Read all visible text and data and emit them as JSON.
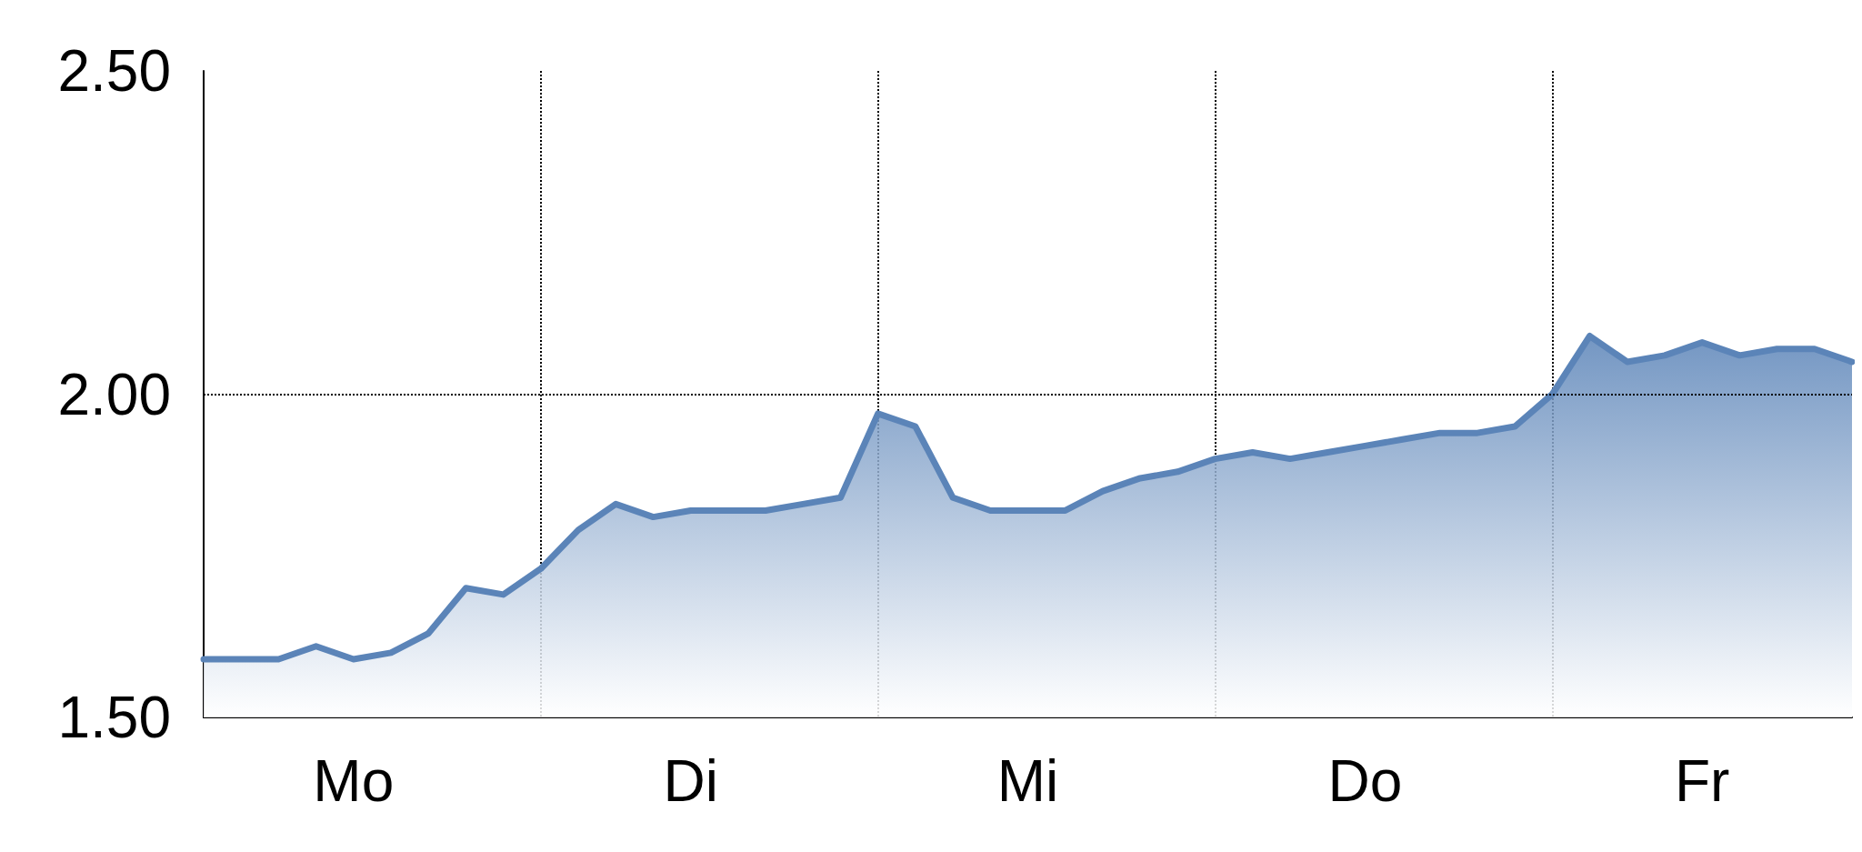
{
  "chart_data": {
    "type": "area",
    "categories": [
      null,
      null,
      null,
      null,
      "Mo",
      null,
      null,
      null,
      null,
      null,
      null,
      null,
      null,
      "Di",
      null,
      null,
      null,
      null,
      null,
      null,
      null,
      null,
      "Mi",
      null,
      null,
      null,
      null,
      null,
      null,
      null,
      null,
      "Do",
      null,
      null,
      null,
      null,
      null,
      null,
      null,
      null,
      "Fr",
      null,
      null,
      null,
      null
    ],
    "series": [
      {
        "color": "#5b84b8",
        "values": [
          1.59,
          1.59,
          1.59,
          1.61,
          1.59,
          1.6,
          1.63,
          1.7,
          1.69,
          1.73,
          1.79,
          1.83,
          1.81,
          1.82,
          1.82,
          1.82,
          1.83,
          1.84,
          1.97,
          1.95,
          1.84,
          1.82,
          1.82,
          1.82,
          1.85,
          1.87,
          1.88,
          1.9,
          1.91,
          1.9,
          1.91,
          1.92,
          1.93,
          1.94,
          1.94,
          1.95,
          2.0,
          2.09,
          2.05,
          2.06,
          2.08,
          2.06,
          2.07,
          2.07,
          2.05
        ]
      }
    ],
    "ylim": [
      1.5,
      2.5
    ],
    "yticks": [
      {
        "value": 1.5,
        "label": "1.50"
      },
      {
        "value": 2.0,
        "label": "2.00"
      },
      {
        "value": 2.5,
        "label": "2.50"
      }
    ],
    "ref_lines": [
      {
        "axis": "y",
        "value": 2.0
      }
    ],
    "line_style": "solid",
    "grid": "x"
  }
}
